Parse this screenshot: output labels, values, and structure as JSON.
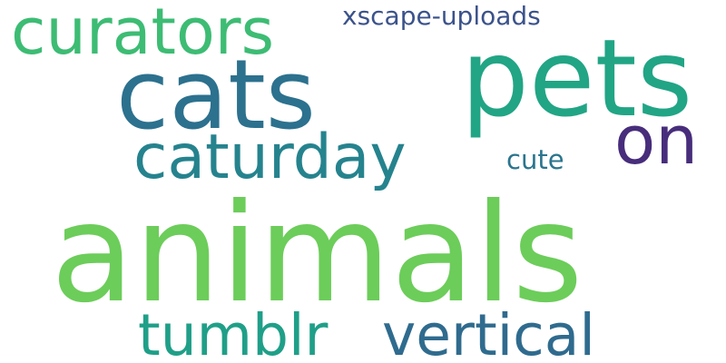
{
  "word_cloud": {
    "words": [
      {
        "text": "animals",
        "color": "#6ccd5a"
      },
      {
        "text": "pets",
        "color": "#21a585"
      },
      {
        "text": "cats",
        "color": "#2c718e"
      },
      {
        "text": "curators",
        "color": "#3dbc74"
      },
      {
        "text": "caturday",
        "color": "#25838e"
      },
      {
        "text": "on",
        "color": "#472d7b"
      },
      {
        "text": "xscape-uploads",
        "color": "#3b528b"
      },
      {
        "text": "cute",
        "color": "#2b758e"
      },
      {
        "text": "tumblr",
        "color": "#1f9f88"
      },
      {
        "text": "vertical",
        "color": "#2f6b8e"
      }
    ]
  }
}
